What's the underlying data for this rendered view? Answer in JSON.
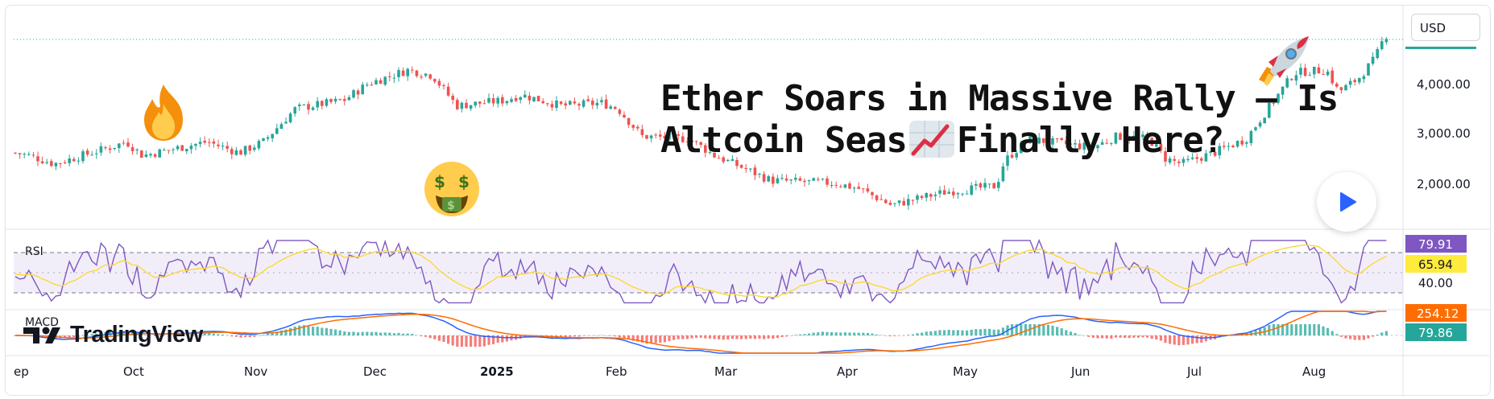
{
  "currency": "USD",
  "headline": {
    "line1": "Ether Soars in Massive Rally — Is",
    "line2_before": "Altcoin Seas",
    "line2_after": "Finally Here?"
  },
  "price_axis": {
    "labels": [
      "4,000.00",
      "3,000.00",
      "2,000.00"
    ]
  },
  "indicators": {
    "rsi": {
      "label": "RSI",
      "value": "79.91",
      "ma_value": "65.94",
      "level": "40.00",
      "value_color": "#7e57c2",
      "ma_color": "#ffeb3b"
    },
    "macd": {
      "label": "MACD",
      "signal_value": "254.12",
      "hist_value": "79.86",
      "signal_color": "#ff6d00",
      "hist_color": "#26a69a",
      "macd_color": "#2962ff"
    }
  },
  "time_axis": {
    "labels": [
      {
        "text": "ep",
        "bold": false
      },
      {
        "text": "Oct",
        "bold": false
      },
      {
        "text": "Nov",
        "bold": false
      },
      {
        "text": "Dec",
        "bold": false
      },
      {
        "text": "2025",
        "bold": true
      },
      {
        "text": "Feb",
        "bold": false
      },
      {
        "text": "Mar",
        "bold": false
      },
      {
        "text": "Apr",
        "bold": false
      },
      {
        "text": "May",
        "bold": false
      },
      {
        "text": "Jun",
        "bold": false
      },
      {
        "text": "Jul",
        "bold": false
      },
      {
        "text": "Aug",
        "bold": false
      }
    ]
  },
  "logo": {
    "text": "TradingView"
  },
  "colors": {
    "up": "#26a69a",
    "down": "#ef5350",
    "price_line": "#26a69a"
  },
  "icons": [
    "fire-emoji-icon",
    "money-mouth-emoji-icon",
    "chart-increasing-emoji-icon",
    "rocket-emoji-icon",
    "play-icon",
    "tradingview-logo-icon"
  ],
  "chart_data": {
    "type": "candlestick",
    "series": [
      {
        "name": "price",
        "x": [
          "Sep",
          "Oct",
          "Nov",
          "Dec",
          "2025",
          "Feb",
          "Mar",
          "Apr",
          "May",
          "Jun",
          "Jul",
          "Aug"
        ],
        "values": [
          2450,
          2650,
          2500,
          3700,
          3350,
          3250,
          2150,
          1600,
          2550,
          2500,
          2600,
          4650
        ]
      }
    ],
    "ylim": [
      1300,
      4850
    ],
    "y_ticks": [
      4000,
      3000,
      2000
    ]
  }
}
